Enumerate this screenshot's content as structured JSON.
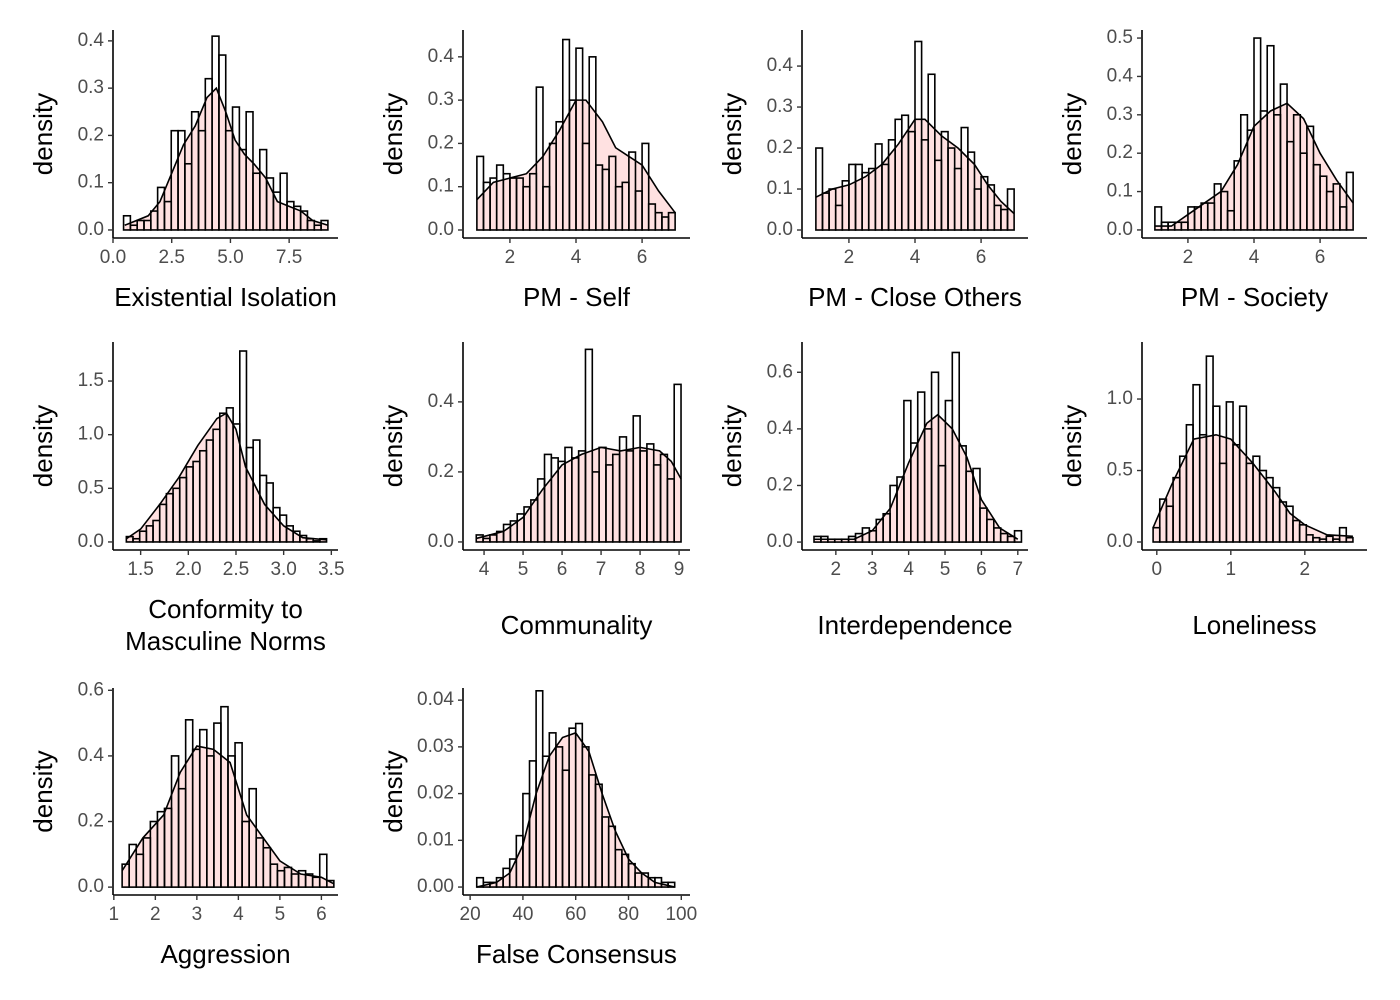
{
  "chart_data": [
    {
      "type": "histogram",
      "xlabel": "Existential Isolation",
      "ylabel": "density",
      "color": "#000000",
      "density_fill": "#ffe1e1",
      "bins": [
        0.45,
        0.74,
        1.03,
        1.32,
        1.61,
        1.9,
        2.19,
        2.48,
        2.77,
        3.06,
        3.35,
        3.64,
        3.93,
        4.22,
        4.51,
        4.8,
        5.09,
        5.38,
        5.67,
        5.96,
        6.25,
        6.54,
        6.83,
        7.12,
        7.41,
        7.7,
        7.99,
        8.28,
        8.57,
        8.86,
        9.15
      ],
      "values": [
        0.03,
        0.01,
        0.02,
        0.02,
        0.04,
        0.09,
        0.06,
        0.21,
        0.21,
        0.14,
        0.25,
        0.21,
        0.32,
        0.41,
        0.37,
        0.21,
        0.26,
        0.17,
        0.25,
        0.12,
        0.17,
        0.11,
        0.08,
        0.12,
        0.06,
        0.05,
        0.04,
        0.02,
        0.01,
        0.02
      ],
      "density": {
        "x": [
          0.5,
          1.5,
          2.0,
          2.5,
          3.0,
          3.5,
          4.0,
          4.4,
          4.8,
          5.2,
          5.6,
          6.0,
          6.5,
          7.0,
          7.5,
          8.0,
          8.5,
          9.15
        ],
        "y": [
          0.01,
          0.03,
          0.06,
          0.12,
          0.18,
          0.22,
          0.28,
          0.3,
          0.25,
          0.19,
          0.16,
          0.14,
          0.11,
          0.06,
          0.05,
          0.04,
          0.02,
          0.01
        ]
      },
      "xlim": [
        0,
        9.58
      ],
      "ylim": [
        -0.017,
        0.423
      ],
      "xticks": [
        {
          "value": 0,
          "label": "0.0"
        },
        2.5,
        {
          "value": 5,
          "label": "5.0"
        },
        7.5
      ],
      "yticks": [
        {
          "value": 0,
          "label": "0.0"
        },
        0.1,
        0.2,
        0.3,
        0.4
      ]
    },
    {
      "type": "histogram",
      "xlabel": "PM - Self",
      "ylabel": "density",
      "color": "#000000",
      "density_fill": "#ffe1e1",
      "bins": [
        1.0,
        1.2,
        1.4,
        1.6,
        1.8,
        2.0,
        2.2,
        2.4,
        2.6,
        2.8,
        3.0,
        3.2,
        3.4,
        3.6,
        3.8,
        4.0,
        4.2,
        4.4,
        4.6,
        4.8,
        5.0,
        5.2,
        5.4,
        5.6,
        5.8,
        6.0,
        6.2,
        6.4,
        6.6,
        6.8,
        7.0
      ],
      "values": [
        0.17,
        0.11,
        0.12,
        0.15,
        0.13,
        0.12,
        0.12,
        0.1,
        0.13,
        0.33,
        0.1,
        0.2,
        0.25,
        0.44,
        0.3,
        0.42,
        0.2,
        0.4,
        0.15,
        0.14,
        0.17,
        0.1,
        0.11,
        0.18,
        0.09,
        0.2,
        0.06,
        0.04,
        0.03,
        0.04
      ],
      "density": {
        "x": [
          1.0,
          1.5,
          2.0,
          2.5,
          3.0,
          3.5,
          4.0,
          4.3,
          4.8,
          5.2,
          5.6,
          6.0,
          6.5,
          7.0
        ],
        "y": [
          0.07,
          0.11,
          0.12,
          0.13,
          0.17,
          0.23,
          0.3,
          0.3,
          0.25,
          0.19,
          0.17,
          0.15,
          0.09,
          0.04
        ]
      },
      "xlim": [
        0.58,
        7.45
      ],
      "ylim": [
        -0.0185,
        0.462
      ],
      "xticks": [
        2,
        4,
        6
      ],
      "yticks": [
        {
          "value": 0,
          "label": "0.0"
        },
        0.1,
        0.2,
        0.3,
        0.4
      ]
    },
    {
      "type": "histogram",
      "xlabel": "PM - Close Others",
      "ylabel": "density",
      "color": "#000000",
      "density_fill": "#ffe1e1",
      "bins": [
        1.0,
        1.2,
        1.4,
        1.6,
        1.8,
        2.0,
        2.2,
        2.4,
        2.6,
        2.8,
        3.0,
        3.2,
        3.4,
        3.6,
        3.8,
        4.0,
        4.2,
        4.4,
        4.6,
        4.8,
        5.0,
        5.2,
        5.4,
        5.6,
        5.8,
        6.0,
        6.2,
        6.4,
        6.6,
        6.8,
        7.0
      ],
      "values": [
        0.2,
        0.09,
        0.1,
        0.06,
        0.12,
        0.16,
        0.16,
        0.14,
        0.15,
        0.21,
        0.16,
        0.22,
        0.27,
        0.28,
        0.24,
        0.46,
        0.22,
        0.38,
        0.17,
        0.24,
        0.2,
        0.15,
        0.25,
        0.19,
        0.1,
        0.13,
        0.11,
        0.06,
        0.05,
        0.1
      ],
      "density": {
        "x": [
          1.0,
          1.5,
          2.0,
          2.5,
          3.0,
          3.5,
          4.0,
          4.3,
          4.8,
          5.3,
          5.8,
          6.2,
          6.6,
          7.0
        ],
        "y": [
          0.08,
          0.1,
          0.11,
          0.13,
          0.16,
          0.21,
          0.27,
          0.27,
          0.23,
          0.2,
          0.16,
          0.11,
          0.07,
          0.04
        ]
      },
      "xlim": [
        0.58,
        7.42
      ],
      "ylim": [
        -0.0195,
        0.488
      ],
      "xticks": [
        2,
        4,
        6
      ],
      "yticks": [
        {
          "value": 0,
          "label": "0.0"
        },
        0.1,
        0.2,
        0.3,
        0.4
      ]
    },
    {
      "type": "histogram",
      "xlabel": "PM - Society",
      "ylabel": "density",
      "color": "#000000",
      "density_fill": "#ffe1e1",
      "bins": [
        1.0,
        1.2,
        1.4,
        1.6,
        1.8,
        2.0,
        2.2,
        2.4,
        2.6,
        2.8,
        3.0,
        3.2,
        3.4,
        3.6,
        3.8,
        4.0,
        4.2,
        4.4,
        4.6,
        4.8,
        5.0,
        5.2,
        5.4,
        5.6,
        5.8,
        6.0,
        6.2,
        6.4,
        6.6,
        6.8,
        7.0
      ],
      "values": [
        0.06,
        0.02,
        0.02,
        0.02,
        0.02,
        0.06,
        0.06,
        0.07,
        0.07,
        0.12,
        0.1,
        0.05,
        0.18,
        0.3,
        0.26,
        0.5,
        0.31,
        0.48,
        0.3,
        0.38,
        0.23,
        0.3,
        0.2,
        0.27,
        0.17,
        0.14,
        0.1,
        0.12,
        0.06,
        0.15
      ],
      "density": {
        "x": [
          1.0,
          1.5,
          2.0,
          2.5,
          3.0,
          3.5,
          4.0,
          4.5,
          5.0,
          5.5,
          6.0,
          6.5,
          7.0
        ],
        "y": [
          0.01,
          0.01,
          0.04,
          0.07,
          0.1,
          0.17,
          0.27,
          0.31,
          0.33,
          0.29,
          0.2,
          0.13,
          0.07
        ]
      },
      "xlim": [
        0.61,
        7.42
      ],
      "ylim": [
        -0.021,
        0.521
      ],
      "xticks": [
        2,
        4,
        6
      ],
      "yticks": [
        {
          "value": 0,
          "label": "0.0"
        },
        0.1,
        0.2,
        0.3,
        0.4,
        0.5
      ]
    },
    {
      "type": "histogram",
      "xlabel": "Conformity to\nMasculine Norms",
      "ylabel": "density",
      "color": "#000000",
      "density_fill": "#ffe1e1",
      "bins": [
        1.35,
        1.42,
        1.49,
        1.56,
        1.63,
        1.7,
        1.77,
        1.84,
        1.91,
        1.98,
        2.05,
        2.12,
        2.19,
        2.26,
        2.33,
        2.4,
        2.47,
        2.54,
        2.61,
        2.68,
        2.75,
        2.82,
        2.89,
        2.96,
        3.03,
        3.1,
        3.17,
        3.24,
        3.31,
        3.38,
        3.45
      ],
      "values": [
        0.05,
        0.03,
        0.1,
        0.15,
        0.2,
        0.35,
        0.45,
        0.5,
        0.6,
        0.7,
        0.75,
        0.85,
        0.95,
        1.05,
        1.2,
        1.25,
        1.1,
        1.78,
        0.88,
        0.95,
        0.62,
        0.55,
        0.32,
        0.25,
        0.15,
        0.1,
        0.06,
        0.03,
        0.01,
        0.03
      ],
      "density": {
        "x": [
          1.35,
          1.5,
          1.7,
          1.9,
          2.1,
          2.3,
          2.4,
          2.5,
          2.6,
          2.8,
          3.0,
          3.2,
          3.45
        ],
        "y": [
          0.03,
          0.12,
          0.35,
          0.6,
          0.9,
          1.15,
          1.2,
          1.05,
          0.7,
          0.35,
          0.15,
          0.04,
          0.02
        ]
      },
      "xlim": [
        1.21,
        3.57
      ],
      "ylim": [
        -0.075,
        1.864
      ],
      "xticks": [
        1.5,
        {
          "value": 2,
          "label": "2.0"
        },
        2.5,
        {
          "value": 3,
          "label": "3.0"
        },
        3.5
      ],
      "yticks": [
        {
          "value": 0,
          "label": "0.0"
        },
        0.5,
        {
          "value": 1,
          "label": "1.0"
        },
        1.5
      ]
    },
    {
      "type": "histogram",
      "xlabel": "Communality",
      "ylabel": "density",
      "color": "#000000",
      "density_fill": "#ffe1e1",
      "bins": [
        3.8,
        3.975,
        4.15,
        4.325,
        4.5,
        4.675,
        4.85,
        5.025,
        5.2,
        5.375,
        5.55,
        5.725,
        5.9,
        6.075,
        6.25,
        6.425,
        6.6,
        6.775,
        6.95,
        7.125,
        7.3,
        7.475,
        7.65,
        7.825,
        8.0,
        8.175,
        8.35,
        8.525,
        8.7,
        8.875,
        9.05
      ],
      "values": [
        0.02,
        0.01,
        0.02,
        0.03,
        0.05,
        0.06,
        0.08,
        0.1,
        0.12,
        0.18,
        0.25,
        0.24,
        0.23,
        0.27,
        0.24,
        0.26,
        0.55,
        0.2,
        0.27,
        0.22,
        0.25,
        0.3,
        0.26,
        0.36,
        0.26,
        0.28,
        0.22,
        0.25,
        0.18,
        0.45
      ],
      "density": {
        "x": [
          3.8,
          4.5,
          5.0,
          5.5,
          6.0,
          6.5,
          7.0,
          7.5,
          8.0,
          8.5,
          8.8,
          9.05
        ],
        "y": [
          0.01,
          0.03,
          0.07,
          0.15,
          0.22,
          0.25,
          0.27,
          0.26,
          0.27,
          0.26,
          0.23,
          0.18
        ]
      },
      "xlim": [
        3.46,
        9.28
      ],
      "ylim": [
        -0.023,
        0.571
      ],
      "xticks": [
        4,
        5,
        6,
        7,
        8,
        9
      ],
      "yticks": [
        {
          "value": 0,
          "label": "0.0"
        },
        0.2,
        0.4
      ]
    },
    {
      "type": "histogram",
      "xlabel": "Interdependence",
      "ylabel": "density",
      "color": "#000000",
      "density_fill": "#ffe1e1",
      "bins": [
        1.4,
        1.59,
        1.78,
        1.97,
        2.16,
        2.35,
        2.54,
        2.73,
        2.92,
        3.11,
        3.3,
        3.49,
        3.68,
        3.87,
        4.06,
        4.25,
        4.44,
        4.63,
        4.82,
        5.01,
        5.2,
        5.39,
        5.58,
        5.77,
        5.96,
        6.15,
        6.34,
        6.53,
        6.72,
        6.91,
        7.1
      ],
      "values": [
        0.02,
        0.02,
        0.01,
        0.01,
        0.01,
        0.02,
        0.03,
        0.05,
        0.04,
        0.08,
        0.1,
        0.2,
        0.23,
        0.5,
        0.35,
        0.53,
        0.4,
        0.6,
        0.27,
        0.5,
        0.67,
        0.34,
        0.25,
        0.26,
        0.12,
        0.08,
        0.05,
        0.03,
        0.02,
        0.04
      ],
      "density": {
        "x": [
          1.4,
          2.5,
          3.0,
          3.5,
          4.0,
          4.5,
          4.8,
          5.2,
          5.6,
          6.0,
          6.5,
          7.0
        ],
        "y": [
          0.01,
          0.01,
          0.04,
          0.12,
          0.28,
          0.42,
          0.45,
          0.4,
          0.3,
          0.15,
          0.05,
          0.01
        ]
      },
      "xlim": [
        1.07,
        7.28
      ],
      "ylim": [
        -0.028,
        0.707
      ],
      "xticks": [
        2,
        3,
        4,
        5,
        6,
        7
      ],
      "yticks": [
        {
          "value": 0,
          "label": "0.0"
        },
        0.2,
        0.4,
        0.6
      ]
    },
    {
      "type": "histogram",
      "xlabel": "Loneliness",
      "ylabel": "density",
      "color": "#000000",
      "density_fill": "#ffe1e1",
      "bins": [
        -0.05,
        0.04,
        0.13,
        0.22,
        0.31,
        0.4,
        0.49,
        0.58,
        0.67,
        0.76,
        0.85,
        0.94,
        1.03,
        1.12,
        1.21,
        1.3,
        1.39,
        1.48,
        1.57,
        1.66,
        1.75,
        1.84,
        1.93,
        2.02,
        2.11,
        2.2,
        2.29,
        2.38,
        2.47,
        2.56,
        2.65
      ],
      "values": [
        0.1,
        0.3,
        0.25,
        0.45,
        0.6,
        0.82,
        1.1,
        0.75,
        1.3,
        0.95,
        0.55,
        0.98,
        0.68,
        0.95,
        0.55,
        0.6,
        0.5,
        0.45,
        0.38,
        0.28,
        0.25,
        0.15,
        0.12,
        0.05,
        0.03,
        0.02,
        0.04,
        0.02,
        0.1,
        0.03
      ],
      "density": {
        "x": [
          -0.05,
          0.2,
          0.5,
          0.8,
          1.0,
          1.3,
          1.6,
          1.8,
          2.0,
          2.3,
          2.65
        ],
        "y": [
          0.1,
          0.4,
          0.72,
          0.75,
          0.72,
          0.55,
          0.35,
          0.2,
          0.12,
          0.05,
          0.04
        ]
      },
      "xlim": [
        -0.2,
        2.84
      ],
      "ylim": [
        -0.056,
        1.399
      ],
      "xticks": [
        0,
        1,
        2
      ],
      "yticks": [
        {
          "value": 0,
          "label": "0.0"
        },
        0.5,
        {
          "value": 1,
          "label": "1.0"
        }
      ]
    },
    {
      "type": "histogram",
      "xlabel": "Aggression",
      "ylabel": "density",
      "color": "#000000",
      "density_fill": "#ffe1e1",
      "bins": [
        1.2,
        1.37,
        1.54,
        1.71,
        1.88,
        2.05,
        2.22,
        2.39,
        2.56,
        2.73,
        2.9,
        3.07,
        3.24,
        3.41,
        3.58,
        3.75,
        3.92,
        4.09,
        4.26,
        4.43,
        4.6,
        4.77,
        4.94,
        5.11,
        5.28,
        5.45,
        5.62,
        5.79,
        5.96,
        6.13,
        6.3
      ],
      "values": [
        0.07,
        0.13,
        0.1,
        0.15,
        0.2,
        0.23,
        0.24,
        0.4,
        0.3,
        0.51,
        0.42,
        0.48,
        0.4,
        0.5,
        0.55,
        0.4,
        0.44,
        0.2,
        0.3,
        0.15,
        0.12,
        0.07,
        0.05,
        0.06,
        0.04,
        0.05,
        0.04,
        0.03,
        0.1,
        0.02
      ],
      "density": {
        "x": [
          1.2,
          1.7,
          2.2,
          2.6,
          3.0,
          3.4,
          3.8,
          4.2,
          4.6,
          5.0,
          5.5,
          6.0,
          6.3
        ],
        "y": [
          0.05,
          0.15,
          0.22,
          0.35,
          0.43,
          0.42,
          0.38,
          0.22,
          0.15,
          0.08,
          0.04,
          0.03,
          0.01
        ]
      },
      "xlim": [
        0.98,
        6.4
      ],
      "ylim": [
        -0.024,
        0.607
      ],
      "xticks": [
        1,
        2,
        3,
        4,
        5,
        6
      ],
      "yticks": [
        {
          "value": 0,
          "label": "0.0"
        },
        0.2,
        0.4,
        0.6
      ]
    },
    {
      "type": "histogram",
      "xlabel": "False Consensus",
      "ylabel": "density",
      "color": "#000000",
      "density_fill": "#ffe1e1",
      "bins": [
        22.5,
        25,
        27.5,
        30,
        32.5,
        35,
        37.5,
        40,
        42.5,
        45,
        47.5,
        50,
        52.5,
        55,
        57.5,
        60,
        62.5,
        65,
        67.5,
        70,
        72.5,
        75,
        77.5,
        80,
        82.5,
        85,
        87.5,
        90,
        92.5,
        95,
        97.5
      ],
      "values": [
        0.002,
        0.001,
        0.001,
        0.002,
        0.004,
        0.006,
        0.011,
        0.02,
        0.027,
        0.042,
        0.028,
        0.033,
        0.03,
        0.025,
        0.034,
        0.035,
        0.03,
        0.024,
        0.022,
        0.015,
        0.013,
        0.008,
        0.007,
        0.005,
        0.003,
        0.003,
        0.002,
        0.002,
        0.001,
        0.001
      ],
      "density": {
        "x": [
          22.5,
          30,
          35,
          40,
          45,
          50,
          55,
          60,
          65,
          70,
          75,
          80,
          85,
          90,
          97.5
        ],
        "y": [
          0.0,
          0.001,
          0.003,
          0.009,
          0.02,
          0.028,
          0.032,
          0.033,
          0.029,
          0.02,
          0.012,
          0.006,
          0.003,
          0.001,
          0.0
        ]
      },
      "xlim": [
        17.3,
        103.3
      ],
      "ylim": [
        -0.0017,
        0.0426
      ],
      "xticks": [
        20,
        40,
        60,
        80,
        100
      ],
      "yticks": [
        {
          "value": 0,
          "label": "0.00"
        },
        0.01,
        0.02,
        0.03,
        0.04
      ]
    }
  ]
}
